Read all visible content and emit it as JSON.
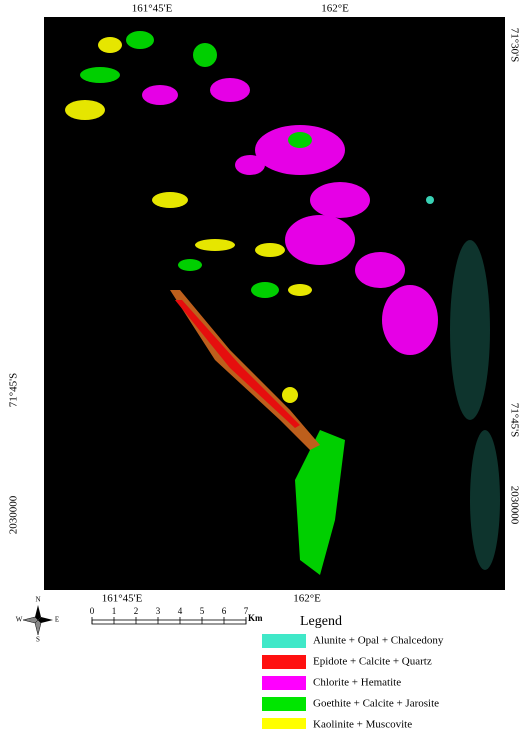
{
  "map": {
    "top_labels": [
      "161°45'E",
      "162°E"
    ],
    "bottom_labels": [
      "161°45'E",
      "162°E"
    ],
    "left_labels": [
      "71°45'S",
      "2030000"
    ],
    "right_labels": [
      "71°30'S",
      "71°45'S",
      "2030000"
    ]
  },
  "north_arrow": {
    "n": "N",
    "s": "S",
    "e": "E",
    "w": "W"
  },
  "scale_bar": {
    "ticks": [
      0,
      1,
      2,
      3,
      4,
      5,
      6,
      7
    ],
    "unit": "Km"
  },
  "legend": {
    "title": "Legend",
    "items": [
      {
        "label": "Alunite + Opal + Chalcedony",
        "color": "#40e8c8"
      },
      {
        "label": "Epidote + Calcite + Quartz",
        "color": "#ff1010"
      },
      {
        "label": "Chlorite + Hematite",
        "color": "#ff00ff"
      },
      {
        "label": "Goethite + Calcite + Jarosite",
        "color": "#00e600"
      },
      {
        "label": "Kaolinite + Muscovite",
        "color": "#ffff00"
      }
    ]
  }
}
